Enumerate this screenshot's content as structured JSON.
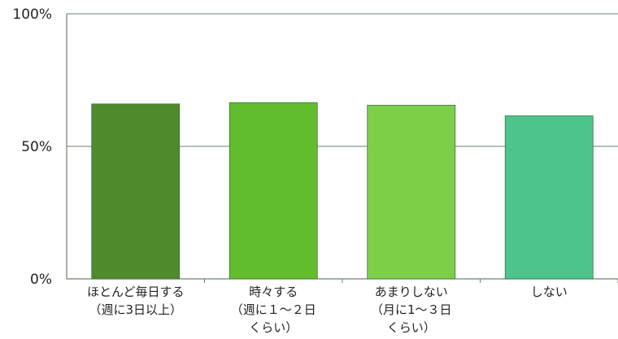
{
  "chart_data": {
    "type": "bar",
    "title": "",
    "xlabel": "",
    "ylabel": "",
    "ylim": [
      0,
      100
    ],
    "yticks": [
      "0%",
      "50%",
      "100%"
    ],
    "ytick_values": [
      0,
      50,
      100
    ],
    "categories": [
      [
        "ほとんど毎日する",
        "（週に3日以上）"
      ],
      [
        "時々する",
        "（週に１～２日",
        "くらい）"
      ],
      [
        "あまりしない",
        "（月に1～３日",
        "くらい）"
      ],
      [
        "しない"
      ]
    ],
    "values": [
      66,
      66.5,
      65.5,
      61.5
    ],
    "colors": [
      "#4f8a2c",
      "#62bd2d",
      "#7dcf4a",
      "#4dc48c"
    ],
    "grid": true
  }
}
